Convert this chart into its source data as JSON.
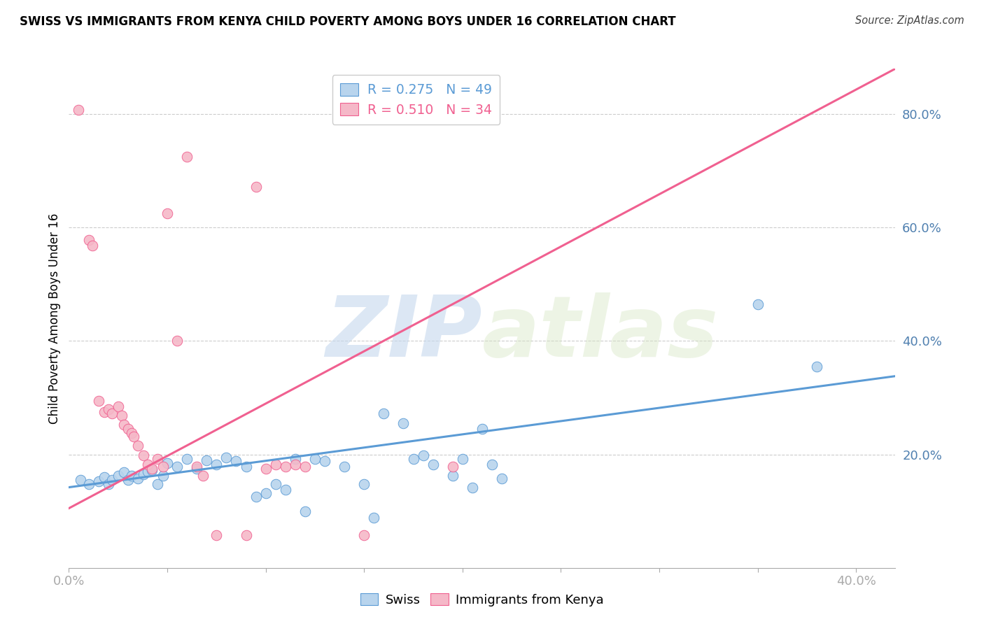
{
  "title": "SWISS VS IMMIGRANTS FROM KENYA CHILD POVERTY AMONG BOYS UNDER 16 CORRELATION CHART",
  "source": "Source: ZipAtlas.com",
  "ylabel": "Child Poverty Among Boys Under 16",
  "xlim": [
    0.0,
    0.42
  ],
  "ylim": [
    0.0,
    0.88
  ],
  "xticks": [
    0.0,
    0.05,
    0.1,
    0.15,
    0.2,
    0.25,
    0.3,
    0.35,
    0.4
  ],
  "yticks": [
    0.0,
    0.2,
    0.4,
    0.6,
    0.8
  ],
  "swiss_R": 0.275,
  "swiss_N": 49,
  "kenya_R": 0.51,
  "kenya_N": 34,
  "swiss_color": "#b8d4ed",
  "kenya_color": "#f5b8c8",
  "swiss_line_color": "#5b9bd5",
  "kenya_line_color": "#f06090",
  "watermark_zip": "ZIP",
  "watermark_atlas": "atlas",
  "swiss_scatter": [
    [
      0.006,
      0.155
    ],
    [
      0.01,
      0.148
    ],
    [
      0.015,
      0.152
    ],
    [
      0.018,
      0.16
    ],
    [
      0.02,
      0.148
    ],
    [
      0.022,
      0.155
    ],
    [
      0.025,
      0.162
    ],
    [
      0.028,
      0.168
    ],
    [
      0.03,
      0.155
    ],
    [
      0.032,
      0.162
    ],
    [
      0.035,
      0.158
    ],
    [
      0.038,
      0.165
    ],
    [
      0.04,
      0.17
    ],
    [
      0.042,
      0.172
    ],
    [
      0.045,
      0.148
    ],
    [
      0.048,
      0.162
    ],
    [
      0.05,
      0.185
    ],
    [
      0.055,
      0.178
    ],
    [
      0.06,
      0.192
    ],
    [
      0.065,
      0.175
    ],
    [
      0.07,
      0.19
    ],
    [
      0.075,
      0.182
    ],
    [
      0.08,
      0.195
    ],
    [
      0.085,
      0.188
    ],
    [
      0.09,
      0.178
    ],
    [
      0.095,
      0.125
    ],
    [
      0.1,
      0.132
    ],
    [
      0.105,
      0.148
    ],
    [
      0.11,
      0.138
    ],
    [
      0.115,
      0.192
    ],
    [
      0.12,
      0.1
    ],
    [
      0.125,
      0.192
    ],
    [
      0.13,
      0.188
    ],
    [
      0.14,
      0.178
    ],
    [
      0.15,
      0.148
    ],
    [
      0.155,
      0.088
    ],
    [
      0.16,
      0.272
    ],
    [
      0.17,
      0.255
    ],
    [
      0.175,
      0.192
    ],
    [
      0.18,
      0.198
    ],
    [
      0.185,
      0.182
    ],
    [
      0.195,
      0.162
    ],
    [
      0.2,
      0.192
    ],
    [
      0.205,
      0.142
    ],
    [
      0.21,
      0.245
    ],
    [
      0.215,
      0.182
    ],
    [
      0.22,
      0.158
    ],
    [
      0.35,
      0.465
    ],
    [
      0.38,
      0.355
    ]
  ],
  "kenya_scatter": [
    [
      0.005,
      0.808
    ],
    [
      0.01,
      0.578
    ],
    [
      0.012,
      0.568
    ],
    [
      0.015,
      0.295
    ],
    [
      0.018,
      0.275
    ],
    [
      0.02,
      0.28
    ],
    [
      0.022,
      0.272
    ],
    [
      0.025,
      0.285
    ],
    [
      0.027,
      0.268
    ],
    [
      0.028,
      0.252
    ],
    [
      0.03,
      0.245
    ],
    [
      0.032,
      0.238
    ],
    [
      0.033,
      0.232
    ],
    [
      0.035,
      0.215
    ],
    [
      0.038,
      0.198
    ],
    [
      0.04,
      0.182
    ],
    [
      0.042,
      0.175
    ],
    [
      0.045,
      0.192
    ],
    [
      0.048,
      0.178
    ],
    [
      0.05,
      0.625
    ],
    [
      0.055,
      0.4
    ],
    [
      0.06,
      0.725
    ],
    [
      0.065,
      0.178
    ],
    [
      0.068,
      0.162
    ],
    [
      0.075,
      0.058
    ],
    [
      0.09,
      0.058
    ],
    [
      0.095,
      0.672
    ],
    [
      0.1,
      0.175
    ],
    [
      0.105,
      0.182
    ],
    [
      0.11,
      0.178
    ],
    [
      0.115,
      0.182
    ],
    [
      0.12,
      0.178
    ],
    [
      0.15,
      0.058
    ],
    [
      0.195,
      0.178
    ]
  ],
  "swiss_trend_x": [
    0.0,
    0.42
  ],
  "swiss_trend_y": [
    0.142,
    0.338
  ],
  "kenya_trend_x": [
    0.0,
    0.42
  ],
  "kenya_trend_y": [
    0.105,
    0.88
  ]
}
